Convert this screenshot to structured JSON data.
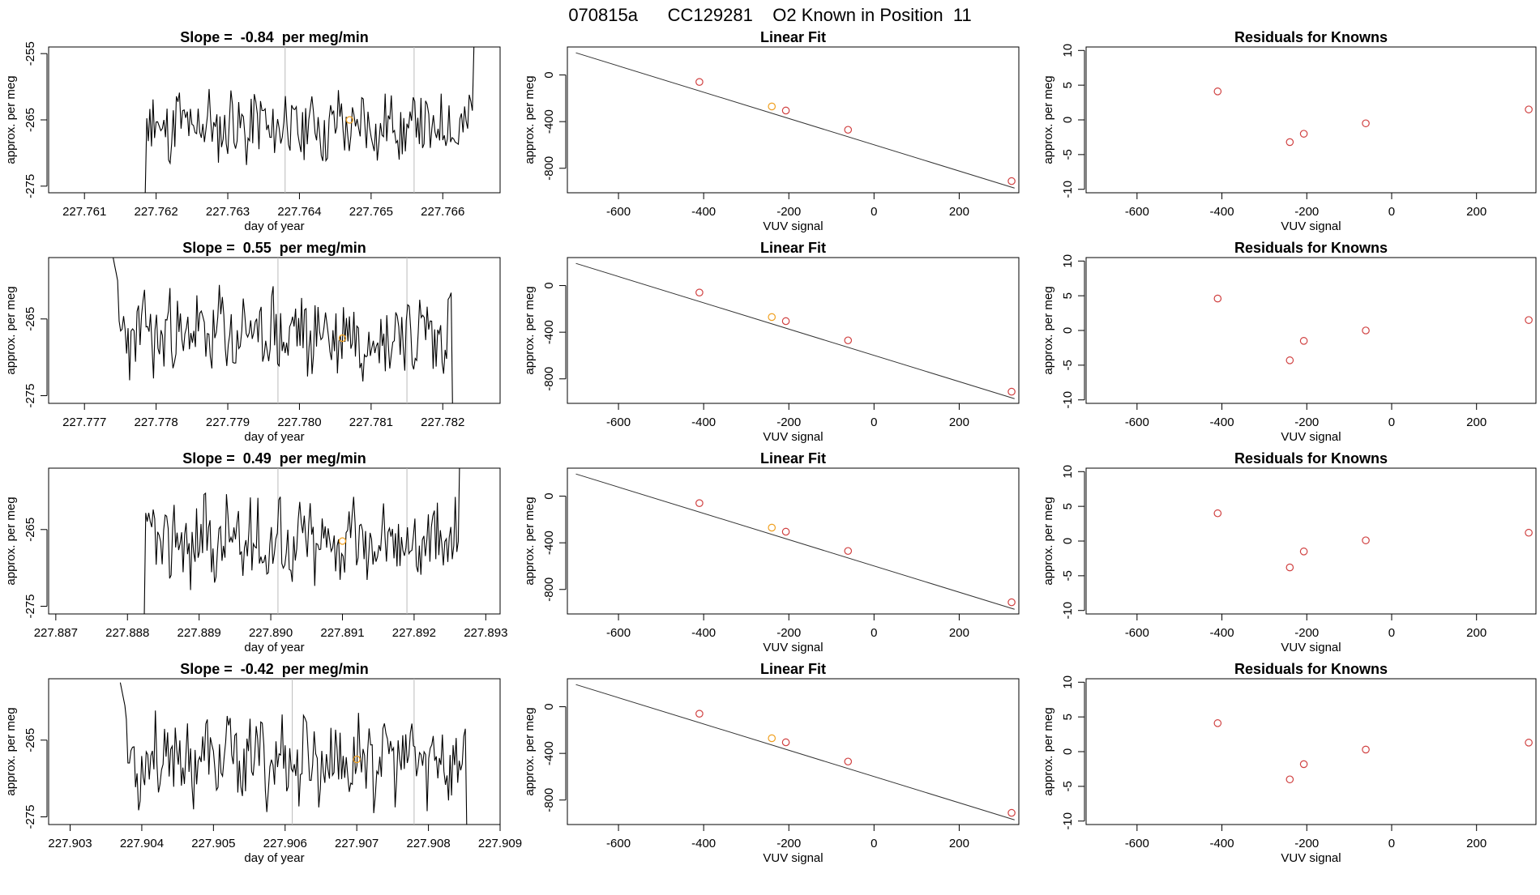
{
  "header": {
    "title": "070815a      CC129281    O2 Known in Position  11"
  },
  "colors": {
    "trace": "#000000",
    "refline": "#bbbbbb",
    "point": "#d04040",
    "highlight": "#f0a020"
  },
  "chart_data": [
    {
      "type": "line",
      "title": "Slope =  -0.84  per meg/min",
      "xlabel": "day of year",
      "ylabel": "approx. per meg",
      "xlim": [
        227.7605,
        227.7668
      ],
      "ylim": [
        -276,
        -254
      ],
      "xticks": [
        "227.761",
        "227.762",
        "227.763",
        "227.764",
        "227.765",
        "227.766"
      ],
      "xtick_values": [
        227.761,
        227.762,
        227.763,
        227.764,
        227.765,
        227.766
      ],
      "yticks": [
        "-255",
        "-265",
        "-275"
      ],
      "ytick_values": [
        -255,
        -265,
        -275
      ],
      "vlines": [
        227.7638,
        227.7656
      ],
      "highlight_point": [
        227.7647,
        -265
      ],
      "trace": {
        "start": 227.7615,
        "end": 227.7665,
        "base": -266,
        "baseline_start": -276,
        "seed": 11
      }
    },
    {
      "type": "scatter",
      "title": "Linear Fit",
      "xlabel": "VUV signal",
      "ylabel": "approx. per meg",
      "xlim": [
        -720,
        340
      ],
      "ylim": [
        -1010,
        240
      ],
      "xticks": [
        "-600",
        "-400",
        "-200",
        "0",
        "200"
      ],
      "xtick_values": [
        -600,
        -400,
        -200,
        0,
        200
      ],
      "yticks": [
        "0",
        "-400",
        "-800"
      ],
      "ytick_values": [
        0,
        -400,
        -800
      ],
      "fit_line": {
        "x": [
          -700,
          330
        ],
        "y": [
          190,
          -970
        ]
      },
      "points": {
        "x": [
          -410,
          -240,
          -207,
          -61,
          323
        ],
        "y": [
          -60,
          -270,
          -305,
          -470,
          -910
        ]
      },
      "highlight_index": 1
    },
    {
      "type": "scatter",
      "title": "Residuals for Knowns",
      "xlabel": "VUV signal",
      "ylabel": "approx. per meg",
      "xlim": [
        -720,
        340
      ],
      "ylim": [
        -10.5,
        10.5
      ],
      "xticks": [
        "-600",
        "-400",
        "-200",
        "0",
        "200"
      ],
      "xtick_values": [
        -600,
        -400,
        -200,
        0,
        200
      ],
      "yticks": [
        "10",
        "5",
        "0",
        "-5",
        "-10"
      ],
      "ytick_values": [
        10,
        5,
        0,
        -5,
        -10
      ],
      "points": {
        "x": [
          -410,
          -240,
          -207,
          -61,
          323
        ],
        "y": [
          4.1,
          -3.2,
          -2.0,
          -0.5,
          1.5
        ]
      }
    },
    {
      "type": "line",
      "title": "Slope =  0.55  per meg/min",
      "xlabel": "day of year",
      "ylabel": "approx. per meg",
      "xlim": [
        227.7765,
        227.7828
      ],
      "ylim": [
        -276,
        -257
      ],
      "xticks": [
        "227.777",
        "227.778",
        "227.779",
        "227.780",
        "227.781",
        "227.782"
      ],
      "xtick_values": [
        227.777,
        227.778,
        227.779,
        227.78,
        227.781,
        227.782
      ],
      "yticks": [
        "-265",
        "-275"
      ],
      "ytick_values": [
        -265,
        -275
      ],
      "vlines": [
        227.7797,
        227.7815
      ],
      "highlight_point": [
        227.7806,
        -267.5
      ],
      "trace": {
        "start": 227.7774,
        "end": 227.7822,
        "base": -267,
        "seed": 23
      }
    },
    {
      "type": "scatter",
      "title": "Linear Fit",
      "xlabel": "VUV signal",
      "ylabel": "approx. per meg",
      "xlim": [
        -720,
        340
      ],
      "ylim": [
        -1010,
        240
      ],
      "xticks": [
        "-600",
        "-400",
        "-200",
        "0",
        "200"
      ],
      "xtick_values": [
        -600,
        -400,
        -200,
        0,
        200
      ],
      "yticks": [
        "0",
        "-400",
        "-800"
      ],
      "ytick_values": [
        0,
        -400,
        -800
      ],
      "fit_line": {
        "x": [
          -700,
          330
        ],
        "y": [
          190,
          -970
        ]
      },
      "points": {
        "x": [
          -410,
          -240,
          -207,
          -61,
          323
        ],
        "y": [
          -60,
          -270,
          -305,
          -470,
          -910
        ]
      },
      "highlight_index": 1
    },
    {
      "type": "scatter",
      "title": "Residuals for Knowns",
      "xlabel": "VUV signal",
      "ylabel": "approx. per meg",
      "xlim": [
        -720,
        340
      ],
      "ylim": [
        -10.5,
        10.5
      ],
      "xticks": [
        "-600",
        "-400",
        "-200",
        "0",
        "200"
      ],
      "xtick_values": [
        -600,
        -400,
        -200,
        0,
        200
      ],
      "yticks": [
        "10",
        "5",
        "0",
        "-5",
        "-10"
      ],
      "ytick_values": [
        10,
        5,
        0,
        -5,
        -10
      ],
      "points": {
        "x": [
          -410,
          -240,
          -207,
          -61,
          323
        ],
        "y": [
          4.6,
          -4.3,
          -1.5,
          0.0,
          1.5
        ]
      }
    },
    {
      "type": "line",
      "title": "Slope =  0.49  per meg/min",
      "xlabel": "day of year",
      "ylabel": "approx. per meg",
      "xlim": [
        227.8869,
        227.8932
      ],
      "ylim": [
        -276,
        -257
      ],
      "xticks": [
        "227.887",
        "227.888",
        "227.889",
        "227.890",
        "227.891",
        "227.892",
        "227.893"
      ],
      "xtick_values": [
        227.887,
        227.888,
        227.889,
        227.89,
        227.891,
        227.892,
        227.893
      ],
      "yticks": [
        "-265",
        "-275"
      ],
      "ytick_values": [
        -265,
        -275
      ],
      "vlines": [
        227.8901,
        227.8919
      ],
      "highlight_point": [
        227.891,
        -266.5
      ],
      "trace": {
        "start": 227.8879,
        "end": 227.8927,
        "base": -266.5,
        "baseline_start": -277,
        "seed": 37
      }
    },
    {
      "type": "scatter",
      "title": "Linear Fit",
      "xlabel": "VUV signal",
      "ylabel": "approx. per meg",
      "xlim": [
        -720,
        340
      ],
      "ylim": [
        -1010,
        240
      ],
      "xticks": [
        "-600",
        "-400",
        "-200",
        "0",
        "200"
      ],
      "xtick_values": [
        -600,
        -400,
        -200,
        0,
        200
      ],
      "yticks": [
        "0",
        "-400",
        "-800"
      ],
      "ytick_values": [
        0,
        -400,
        -800
      ],
      "fit_line": {
        "x": [
          -700,
          330
        ],
        "y": [
          190,
          -970
        ]
      },
      "points": {
        "x": [
          -410,
          -240,
          -207,
          -61,
          323
        ],
        "y": [
          -60,
          -270,
          -305,
          -470,
          -910
        ]
      },
      "highlight_index": 1
    },
    {
      "type": "scatter",
      "title": "Residuals for Knowns",
      "xlabel": "VUV signal",
      "ylabel": "approx. per meg",
      "xlim": [
        -720,
        340
      ],
      "ylim": [
        -10.5,
        10.5
      ],
      "xticks": [
        "-600",
        "-400",
        "-200",
        "0",
        "200"
      ],
      "xtick_values": [
        -600,
        -400,
        -200,
        0,
        200
      ],
      "yticks": [
        "10",
        "5",
        "0",
        "-5",
        "-10"
      ],
      "ytick_values": [
        10,
        5,
        0,
        -5,
        -10
      ],
      "points": {
        "x": [
          -410,
          -240,
          -207,
          -61,
          323
        ],
        "y": [
          4.0,
          -3.8,
          -1.5,
          0.1,
          1.2
        ]
      }
    },
    {
      "type": "line",
      "title": "Slope =  -0.42  per meg/min",
      "xlabel": "day of year",
      "ylabel": "approx. per meg",
      "xlim": [
        227.9027,
        227.909
      ],
      "ylim": [
        -276,
        -257
      ],
      "xticks": [
        "227.903",
        "227.904",
        "227.905",
        "227.906",
        "227.907",
        "227.908",
        "227.909"
      ],
      "xtick_values": [
        227.903,
        227.904,
        227.905,
        227.906,
        227.907,
        227.908,
        227.909
      ],
      "yticks": [
        "-265",
        "-275"
      ],
      "ytick_values": [
        -265,
        -275
      ],
      "vlines": [
        227.9061,
        227.9078
      ],
      "highlight_point": [
        227.907,
        -267.5
      ],
      "trace": {
        "start": 227.9037,
        "end": 227.9086,
        "base": -267.5,
        "seed": 53
      }
    },
    {
      "type": "scatter",
      "title": "Linear Fit",
      "xlabel": "VUV signal",
      "ylabel": "approx. per meg",
      "xlim": [
        -720,
        340
      ],
      "ylim": [
        -1010,
        240
      ],
      "xticks": [
        "-600",
        "-400",
        "-200",
        "0",
        "200"
      ],
      "xtick_values": [
        -600,
        -400,
        -200,
        0,
        200
      ],
      "yticks": [
        "0",
        "-400",
        "-800"
      ],
      "ytick_values": [
        0,
        -400,
        -800
      ],
      "fit_line": {
        "x": [
          -700,
          330
        ],
        "y": [
          190,
          -970
        ]
      },
      "points": {
        "x": [
          -410,
          -240,
          -207,
          -61,
          323
        ],
        "y": [
          -60,
          -270,
          -305,
          -470,
          -910
        ]
      },
      "highlight_index": 1
    },
    {
      "type": "scatter",
      "title": "Residuals for Knowns",
      "xlabel": "VUV signal",
      "ylabel": "approx. per meg",
      "xlim": [
        -720,
        340
      ],
      "ylim": [
        -10.5,
        10.5
      ],
      "xticks": [
        "-600",
        "-400",
        "-200",
        "0",
        "200"
      ],
      "xtick_values": [
        -600,
        -400,
        -200,
        0,
        200
      ],
      "yticks": [
        "10",
        "5",
        "0",
        "-5",
        "-10"
      ],
      "ytick_values": [
        10,
        5,
        0,
        -5,
        -10
      ],
      "points": {
        "x": [
          -410,
          -240,
          -207,
          -61,
          323
        ],
        "y": [
          4.1,
          -4.0,
          -1.8,
          0.3,
          1.3
        ]
      }
    }
  ]
}
